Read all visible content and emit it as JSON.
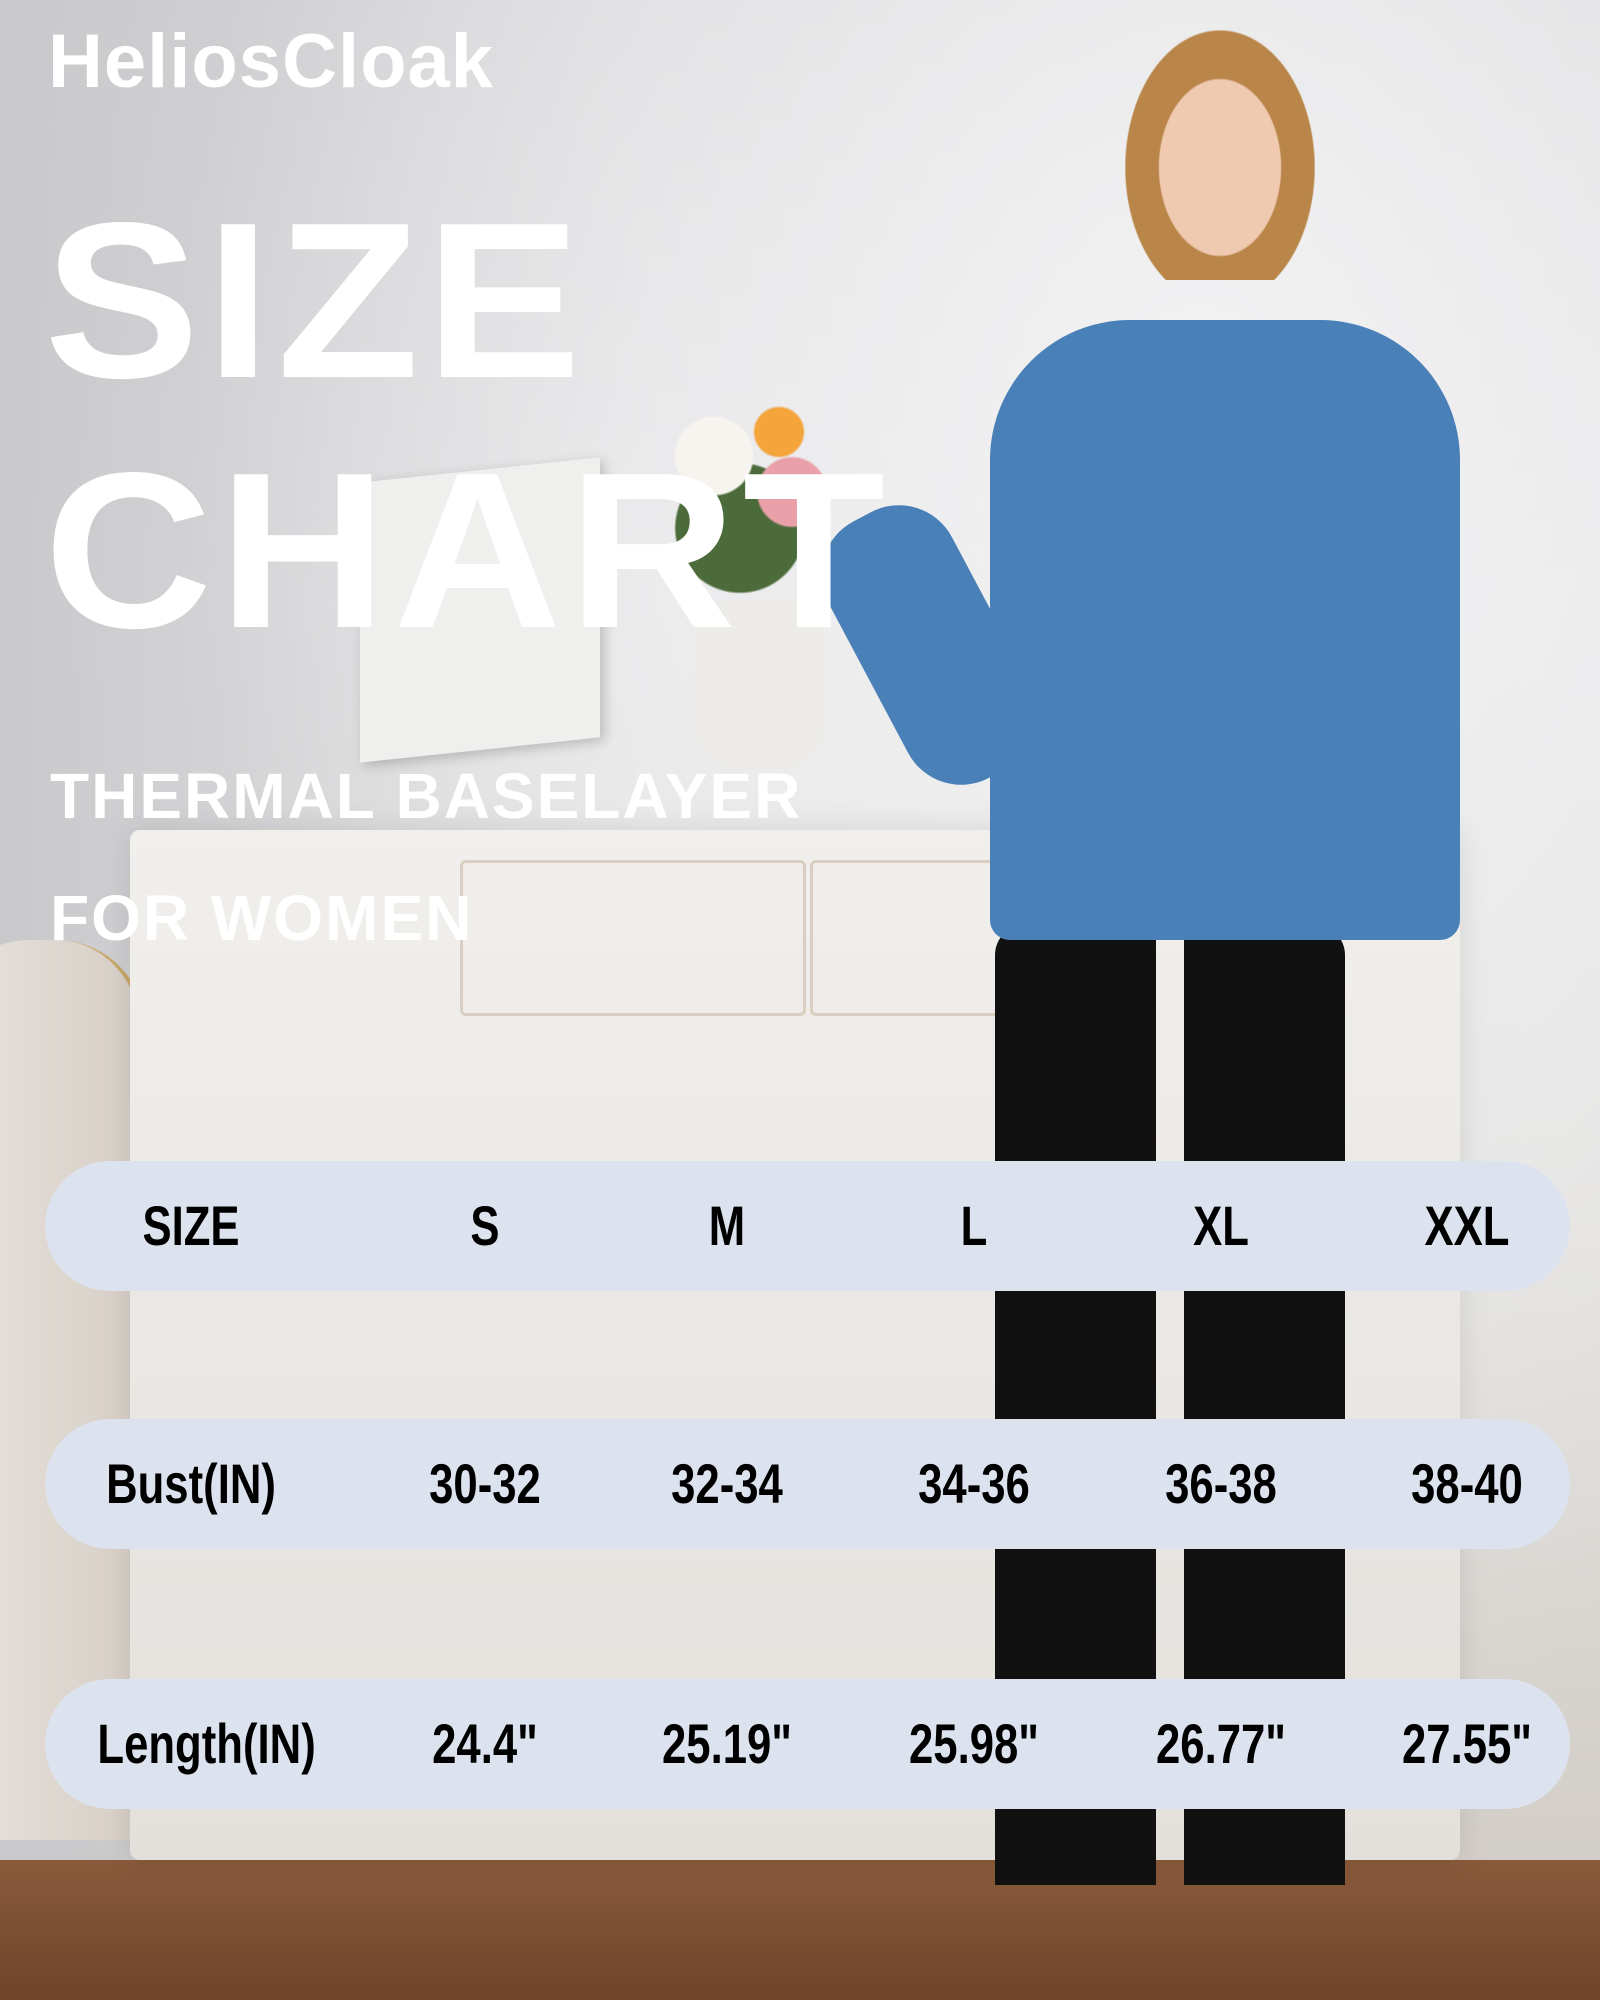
{
  "brand": "HeliosCloak",
  "title_line1": "SIZE",
  "title_line2": "CHART",
  "subtitle_line1": "THERMAL BASELAYER",
  "subtitle_line2": "FOR WOMEN",
  "colors": {
    "row_background": "#dde3ee",
    "text_title": "#ffffff",
    "shirt": "#4a80b8"
  },
  "size_table": {
    "header": [
      "SIZE",
      "S",
      "M",
      "L",
      "XL",
      "XXL"
    ],
    "rows": [
      [
        "Bust(IN)",
        "30-32",
        "32-34",
        "34-36",
        "36-38",
        "38-40"
      ],
      [
        "Length(IN)",
        "24.4\"",
        "25.19\"",
        "25.98\"",
        "26.77\"",
        "27.55\""
      ]
    ]
  }
}
